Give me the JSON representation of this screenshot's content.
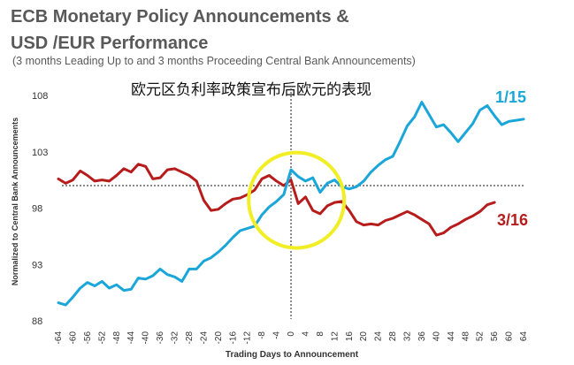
{
  "chart_data": {
    "type": "line",
    "title": "ECB Monetary Policy Announcements & USD /EUR Performance",
    "title_line1": "ECB Monetary Policy Announcements &",
    "title_line2": "USD /EUR Performance",
    "subtitle": "(3 months Leading Up to and 3 months Proceeding Central Bank Announcements)",
    "annotation": "欧元区负利率政策宣布后欧元的表现",
    "xlabel": "Trading Days to Announcement",
    "ylabel": "Normalized to Central Bank Announcements",
    "xlim": [
      -64,
      64
    ],
    "ylim": [
      88,
      108
    ],
    "yticks": [
      88,
      93,
      98,
      103,
      108
    ],
    "xticks": [
      -64,
      -60,
      -56,
      -52,
      -48,
      -44,
      -40,
      -36,
      -32,
      -28,
      -24,
      -20,
      -16,
      -12,
      -8,
      -4,
      0,
      4,
      8,
      12,
      16,
      20,
      24,
      28,
      32,
      36,
      40,
      44,
      48,
      52,
      56,
      60,
      64
    ],
    "reference_line_y": 100,
    "reference_line_x": 0,
    "grid": false,
    "colors": {
      "series_115": "#1aa6d9",
      "series_316": "#b71c1c",
      "highlight_circle": "#f2ee25",
      "reference": "#444444"
    },
    "series": [
      {
        "name": "1/15",
        "color": "#1aa6d9",
        "x": [
          -64,
          -62,
          -60,
          -58,
          -56,
          -54,
          -52,
          -50,
          -48,
          -46,
          -44,
          -42,
          -40,
          -38,
          -36,
          -34,
          -32,
          -30,
          -28,
          -26,
          -24,
          -22,
          -20,
          -18,
          -16,
          -14,
          -12,
          -10,
          -8,
          -6,
          -4,
          -2,
          0,
          2,
          4,
          6,
          8,
          10,
          12,
          14,
          16,
          18,
          20,
          22,
          24,
          26,
          28,
          30,
          32,
          34,
          36,
          38,
          40,
          42,
          44,
          46,
          48,
          50,
          52,
          54,
          56,
          58,
          60,
          62,
          64
        ],
        "values": [
          89.6,
          89.4,
          90.1,
          90.9,
          91.4,
          91.1,
          91.5,
          90.9,
          91.2,
          90.7,
          90.8,
          91.8,
          91.7,
          92.0,
          92.6,
          92.1,
          91.9,
          91.5,
          92.6,
          92.6,
          93.3,
          93.6,
          94.1,
          94.7,
          95.4,
          96.0,
          96.2,
          96.4,
          97.4,
          98.1,
          98.6,
          99.2,
          101.4,
          100.8,
          100.4,
          100.7,
          99.4,
          100.2,
          100.5,
          99.9,
          99.7,
          99.9,
          100.4,
          101.2,
          101.8,
          102.3,
          102.6,
          103.9,
          105.3,
          106.1,
          107.4,
          106.3,
          105.2,
          105.4,
          104.7,
          103.9,
          104.7,
          105.5,
          106.7,
          107.1,
          106.2,
          105.4,
          105.7,
          105.8,
          105.9
        ]
      },
      {
        "name": "3/16",
        "color": "#b71c1c",
        "x": [
          -64,
          -62,
          -60,
          -58,
          -56,
          -54,
          -52,
          -50,
          -48,
          -46,
          -44,
          -42,
          -40,
          -38,
          -36,
          -34,
          -32,
          -30,
          -28,
          -26,
          -24,
          -22,
          -20,
          -18,
          -16,
          -14,
          -12,
          -10,
          -8,
          -6,
          -4,
          -2,
          0,
          2,
          4,
          6,
          8,
          10,
          12,
          14,
          16,
          18,
          20,
          22,
          24,
          26,
          28,
          30,
          32,
          34,
          36,
          38,
          40,
          42,
          44,
          46,
          48,
          50,
          52,
          54,
          56
        ],
        "values": [
          100.6,
          100.2,
          100.5,
          101.3,
          100.9,
          100.4,
          100.5,
          100.4,
          100.9,
          101.5,
          101.2,
          101.9,
          101.7,
          100.6,
          100.7,
          101.4,
          101.5,
          101.2,
          100.9,
          100.4,
          98.7,
          97.8,
          97.9,
          98.4,
          98.8,
          98.9,
          99.2,
          99.6,
          100.6,
          100.9,
          100.4,
          100.0,
          100.5,
          98.4,
          99.0,
          97.8,
          97.5,
          98.2,
          98.5,
          98.6,
          97.8,
          96.8,
          96.5,
          96.6,
          96.5,
          96.9,
          97.1,
          97.4,
          97.7,
          97.4,
          97.0,
          96.6,
          95.6,
          95.8,
          96.3,
          96.6,
          97.0,
          97.3,
          97.7,
          98.3,
          98.5
        ]
      }
    ],
    "series_labels": [
      "1/15",
      "3/16"
    ]
  }
}
